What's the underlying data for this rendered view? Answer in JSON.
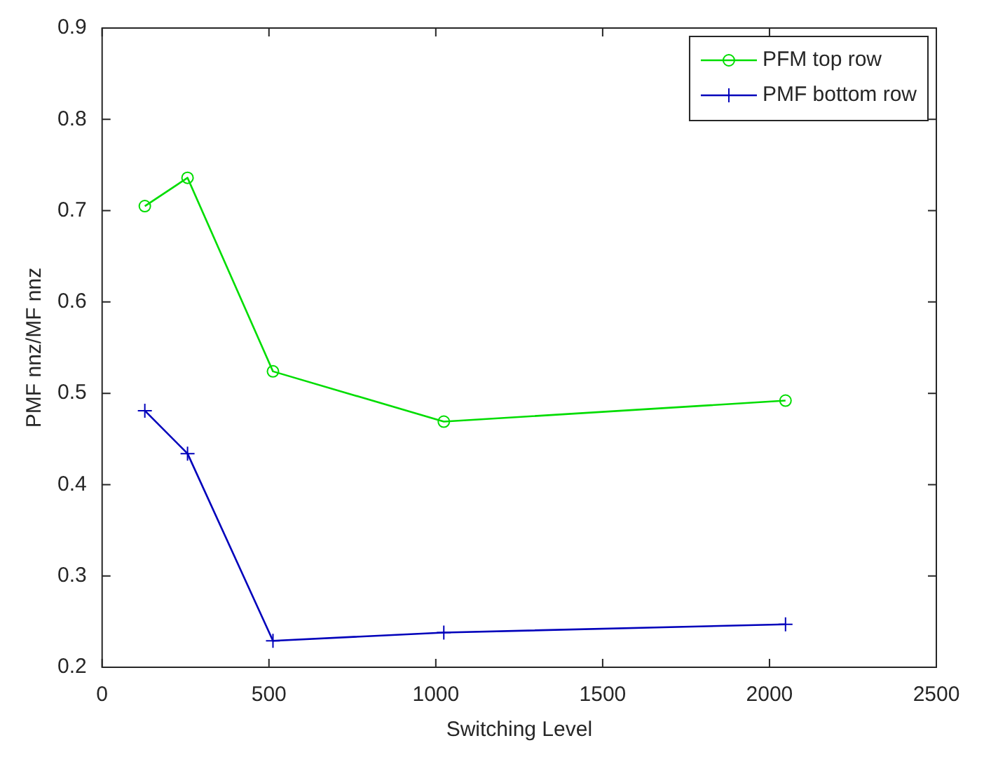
{
  "chart_data": {
    "type": "line",
    "xlabel": "Switching Level",
    "ylabel": "PMF nnz/MF nnz",
    "x": [
      128,
      256,
      512,
      1024,
      2048
    ],
    "series": [
      {
        "name": "PFM top row",
        "color": "#00dd00",
        "marker": "circle",
        "values": [
          0.705,
          0.736,
          0.524,
          0.469,
          0.492
        ]
      },
      {
        "name": "PMF bottom row",
        "color": "#0000bb",
        "marker": "cross",
        "values": [
          0.481,
          0.434,
          0.229,
          0.238,
          0.247
        ]
      }
    ],
    "xlim": [
      0,
      2500
    ],
    "xticks": [
      0,
      500,
      1000,
      1500,
      2000,
      2500
    ],
    "ylim": [
      0.2,
      0.9
    ],
    "yticks": [
      0.2,
      0.3,
      0.4,
      0.5,
      0.6,
      0.7,
      0.8,
      0.9
    ],
    "legend": "top right"
  }
}
